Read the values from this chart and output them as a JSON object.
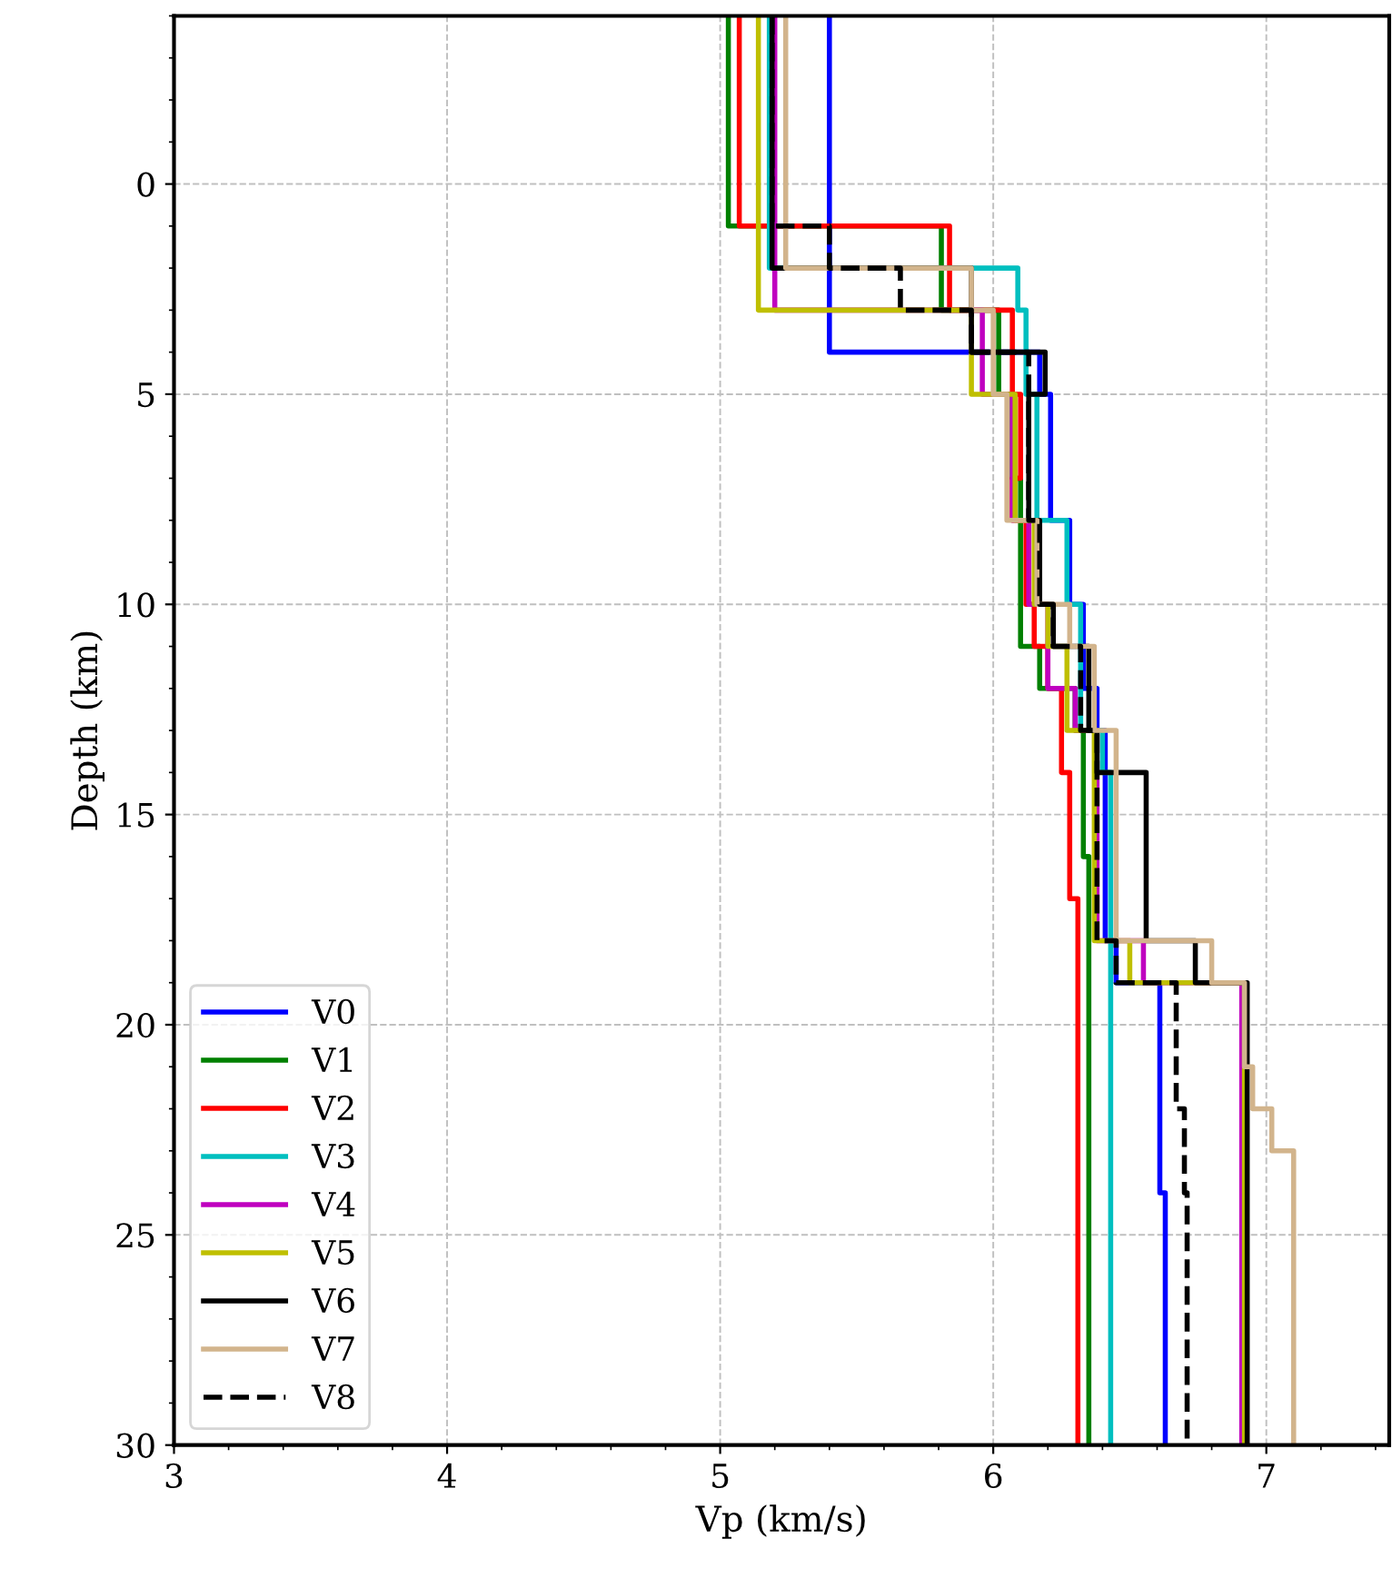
{
  "chart_data": {
    "type": "line",
    "xlabel": "Vp (km/s)",
    "ylabel": "Depth (km)",
    "xlim": [
      3,
      7.45
    ],
    "ylim": [
      30,
      -4
    ],
    "xticks": [
      3,
      4,
      5,
      6,
      7
    ],
    "yticks": [
      0,
      5,
      10,
      15,
      20,
      25,
      30
    ],
    "grid": true,
    "legend": "bottom left",
    "marker": "none",
    "series": [
      {
        "name": "V0",
        "color": "#0000ff",
        "line_style": "solid",
        "x": [
          5.4,
          5.4,
          6.17,
          6.17,
          6.21,
          6.21,
          6.28,
          6.28,
          6.33,
          6.33,
          6.38,
          6.38,
          6.41,
          6.41,
          6.45,
          6.45,
          6.61,
          6.61,
          6.63,
          6.63
        ],
        "values": [
          -4,
          4,
          4,
          5,
          5,
          8,
          8,
          10,
          10,
          12,
          12,
          13,
          13,
          18,
          18,
          19,
          19,
          24,
          24,
          30
        ]
      },
      {
        "name": "V1",
        "color": "#008000",
        "line_style": "solid",
        "x": [
          5.03,
          5.03,
          5.81,
          5.81,
          6.02,
          6.02,
          6.07,
          6.07,
          6.1,
          6.1,
          6.17,
          6.17,
          6.3,
          6.3,
          6.33,
          6.33,
          6.35,
          6.35
        ],
        "values": [
          -4,
          1,
          1,
          3,
          3,
          5,
          5,
          7,
          7,
          11,
          11,
          12,
          12,
          13,
          13,
          16,
          16,
          30
        ]
      },
      {
        "name": "V2",
        "color": "#ff0000",
        "line_style": "solid",
        "x": [
          5.07,
          5.07,
          5.84,
          5.84,
          6.07,
          6.07,
          6.1,
          6.1,
          6.07,
          6.07,
          6.12,
          6.12,
          6.15,
          6.15,
          6.2,
          6.2,
          6.25,
          6.25,
          6.28,
          6.28,
          6.31,
          6.31
        ],
        "values": [
          -4,
          1,
          1,
          3,
          3,
          5,
          5,
          7,
          7,
          8,
          8,
          10,
          10,
          11,
          11,
          12,
          12,
          14,
          14,
          17,
          17,
          30
        ]
      },
      {
        "name": "V3",
        "color": "#00bfbf",
        "line_style": "solid",
        "x": [
          5.18,
          5.18,
          6.09,
          6.09,
          6.12,
          6.12,
          6.16,
          6.16,
          6.27,
          6.27,
          6.32,
          6.32,
          6.4,
          6.4,
          6.43,
          6.43
        ],
        "values": [
          -4,
          2,
          2,
          3,
          3,
          5,
          5,
          8,
          8,
          10,
          10,
          13,
          13,
          14,
          14,
          30
        ]
      },
      {
        "name": "V4",
        "color": "#bf00bf",
        "line_style": "solid",
        "x": [
          5.2,
          5.2,
          5.96,
          5.96,
          6.07,
          6.07,
          6.13,
          6.13,
          6.2,
          6.2,
          6.3,
          6.3,
          6.38,
          6.38,
          6.55,
          6.55,
          6.91,
          6.91
        ],
        "values": [
          -4,
          3,
          3,
          5,
          5,
          8,
          8,
          10,
          10,
          12,
          12,
          13,
          13,
          18,
          18,
          19,
          19,
          30
        ]
      },
      {
        "name": "V5",
        "color": "#bfbf00",
        "line_style": "solid",
        "x": [
          5.14,
          5.14,
          5.92,
          5.92,
          6.08,
          6.08,
          6.15,
          6.15,
          6.2,
          6.2,
          6.27,
          6.27,
          6.37,
          6.37,
          6.5,
          6.5,
          6.92,
          6.92
        ],
        "values": [
          -4,
          3,
          3,
          5,
          5,
          8,
          8,
          10,
          10,
          11,
          11,
          13,
          13,
          18,
          18,
          19,
          19,
          30
        ]
      },
      {
        "name": "V6",
        "color": "#000000",
        "line_style": "solid",
        "x": [
          5.19,
          5.19,
          5.92,
          5.92,
          6.19,
          6.19,
          6.13,
          6.13,
          6.17,
          6.17,
          6.22,
          6.22,
          6.35,
          6.35,
          6.38,
          6.38,
          6.56,
          6.56,
          6.74,
          6.74,
          6.93,
          6.93
        ],
        "values": [
          -4,
          2,
          2,
          4,
          4,
          5,
          5,
          8,
          8,
          10,
          10,
          11,
          11,
          13,
          13,
          14,
          14,
          18,
          18,
          19,
          19,
          30
        ]
      },
      {
        "name": "V7",
        "color": "#d2b48c",
        "line_style": "solid",
        "x": [
          5.24,
          5.24,
          5.92,
          5.92,
          6.0,
          6.0,
          6.05,
          6.05,
          6.16,
          6.16,
          6.28,
          6.28,
          6.37,
          6.37,
          6.45,
          6.45,
          6.8,
          6.8,
          6.92,
          6.92,
          6.95,
          6.95,
          7.02,
          7.02,
          7.1,
          7.1
        ],
        "values": [
          -4,
          2,
          2,
          3,
          3,
          5,
          5,
          8,
          8,
          10,
          10,
          11,
          11,
          13,
          13,
          18,
          18,
          19,
          19,
          21,
          21,
          22,
          22,
          23,
          23,
          30
        ]
      },
      {
        "name": "V8",
        "color": "#000000",
        "line_style": "dashed",
        "x": [
          5.19,
          5.19,
          5.4,
          5.4,
          5.66,
          5.66,
          5.92,
          5.92,
          6.13,
          6.13,
          6.17,
          6.17,
          6.22,
          6.22,
          6.32,
          6.32,
          6.38,
          6.38,
          6.45,
          6.45,
          6.67,
          6.67,
          6.7,
          6.7,
          6.71,
          6.71
        ],
        "values": [
          -4,
          1,
          1,
          2,
          2,
          3,
          3,
          4,
          4,
          8,
          8,
          10,
          10,
          11,
          11,
          13,
          13,
          18,
          18,
          19,
          19,
          22,
          22,
          24,
          24,
          30
        ]
      }
    ]
  }
}
